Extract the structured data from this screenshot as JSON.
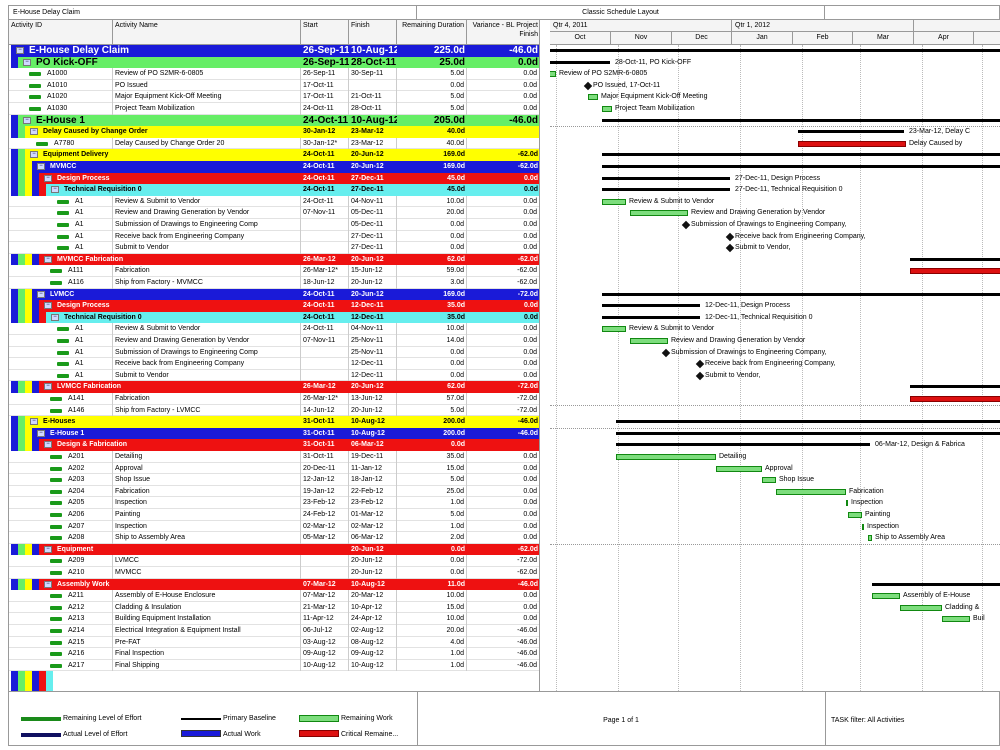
{
  "header": {
    "project_title": "E-House Delay Claim",
    "layout_title": "Classic Schedule Layout"
  },
  "columns": {
    "id": "Activity ID",
    "name": "Activity Name",
    "start": "Start",
    "finish": "Finish",
    "remaining": "Remaining Duration",
    "variance": "Variance - BL Project Finish"
  },
  "timescale": {
    "quarters": [
      "Qtr 4, 2011",
      "Qtr 1, 2012",
      ""
    ],
    "months": [
      "Oct",
      "Nov",
      "Dec",
      "Jan",
      "Feb",
      "Mar",
      "Apr",
      ""
    ]
  },
  "rows": [
    {
      "id": "",
      "name": "E-House Delay Claim",
      "start": "26-Sep-11",
      "finish": "10-Aug-12",
      "dur": "225.0d",
      "var": "-46.0d",
      "kind": "wbs1",
      "level": 0
    },
    {
      "id": "",
      "name": "PO Kick-OFF",
      "start": "26-Sep-11",
      "finish": "28-Oct-11",
      "dur": "25.0d",
      "var": "0.0d",
      "kind": "wbs2",
      "level": 1
    },
    {
      "id": "A1000",
      "name": "Review of PO S2MR-6-0805",
      "start": "26-Sep-11",
      "finish": "30-Sep-11",
      "dur": "5.0d",
      "var": "0.0d",
      "kind": "task",
      "level": 2
    },
    {
      "id": "A1010",
      "name": "PO Issued",
      "start": "17-Oct-11",
      "finish": "",
      "dur": "0.0d",
      "var": "0.0d",
      "kind": "task",
      "level": 2
    },
    {
      "id": "A1020",
      "name": "Major Equipment Kick-Off Meeting",
      "start": "17-Oct-11",
      "finish": "21-Oct-11",
      "dur": "5.0d",
      "var": "0.0d",
      "kind": "task",
      "level": 2
    },
    {
      "id": "A1030",
      "name": "Project Team Mobilization",
      "start": "24-Oct-11",
      "finish": "28-Oct-11",
      "dur": "5.0d",
      "var": "0.0d",
      "kind": "task",
      "level": 2
    },
    {
      "id": "",
      "name": "E-House 1",
      "start": "24-Oct-11",
      "finish": "10-Aug-12",
      "dur": "205.0d",
      "var": "-46.0d",
      "kind": "wbs2",
      "level": 1
    },
    {
      "id": "",
      "name": "Delay Caused by Change Order",
      "start": "30-Jan-12",
      "finish": "23-Mar-12",
      "dur": "40.0d",
      "var": "",
      "kind": "wbs3y",
      "level": 2
    },
    {
      "id": "A7780",
      "name": "Delay Caused by Change Order 20",
      "start": "30-Jan-12*",
      "finish": "23-Mar-12",
      "dur": "40.0d",
      "var": "",
      "kind": "task",
      "level": 3
    },
    {
      "id": "",
      "name": "Equipment Delivery",
      "start": "24-Oct-11",
      "finish": "20-Jun-12",
      "dur": "169.0d",
      "var": "-62.0d",
      "kind": "wbs3y",
      "level": 2
    },
    {
      "id": "",
      "name": "MVMCC",
      "start": "24-Oct-11",
      "finish": "20-Jun-12",
      "dur": "169.0d",
      "var": "-62.0d",
      "kind": "wbs4b",
      "level": 3
    },
    {
      "id": "",
      "name": "Design Process",
      "start": "24-Oct-11",
      "finish": "27-Dec-11",
      "dur": "45.0d",
      "var": "0.0d",
      "kind": "wbs5r",
      "level": 4
    },
    {
      "id": "",
      "name": "Technical Requisition 0",
      "start": "24-Oct-11",
      "finish": "27-Dec-11",
      "dur": "45.0d",
      "var": "0.0d",
      "kind": "wbs6c",
      "level": 5
    },
    {
      "id": "A1",
      "name": "Review & Submit to Vendor",
      "start": "24-Oct-11",
      "finish": "04-Nov-11",
      "dur": "10.0d",
      "var": "0.0d",
      "kind": "task",
      "level": 6
    },
    {
      "id": "A1",
      "name": "Review and Drawing Generation by Vendor",
      "start": "07-Nov-11",
      "finish": "05-Dec-11",
      "dur": "20.0d",
      "var": "0.0d",
      "kind": "task",
      "level": 6
    },
    {
      "id": "A1",
      "name": "Submission of Drawings to Engineering Comp",
      "start": "",
      "finish": "05-Dec-11",
      "dur": "0.0d",
      "var": "0.0d",
      "kind": "task",
      "level": 6
    },
    {
      "id": "A1",
      "name": "Receive back from Engineering Company",
      "start": "",
      "finish": "27-Dec-11",
      "dur": "0.0d",
      "var": "0.0d",
      "kind": "task",
      "level": 6
    },
    {
      "id": "A1",
      "name": "Submit to Vendor",
      "start": "",
      "finish": "27-Dec-11",
      "dur": "0.0d",
      "var": "0.0d",
      "kind": "task",
      "level": 6
    },
    {
      "id": "",
      "name": "MVMCC Fabrication",
      "start": "26-Mar-12",
      "finish": "20-Jun-12",
      "dur": "62.0d",
      "var": "-62.0d",
      "kind": "wbs5r",
      "level": 4
    },
    {
      "id": "A111",
      "name": "Fabrication",
      "start": "26-Mar-12*",
      "finish": "15-Jun-12",
      "dur": "59.0d",
      "var": "-62.0d",
      "kind": "task",
      "level": 5
    },
    {
      "id": "A116",
      "name": "Ship from Factory - MVMCC",
      "start": "18-Jun-12",
      "finish": "20-Jun-12",
      "dur": "3.0d",
      "var": "-62.0d",
      "kind": "task",
      "level": 5
    },
    {
      "id": "",
      "name": "LVMCC",
      "start": "24-Oct-11",
      "finish": "20-Jun-12",
      "dur": "169.0d",
      "var": "-72.0d",
      "kind": "wbs4b",
      "level": 3
    },
    {
      "id": "",
      "name": "Design Process",
      "start": "24-Oct-11",
      "finish": "12-Dec-11",
      "dur": "35.0d",
      "var": "0.0d",
      "kind": "wbs5r",
      "level": 4
    },
    {
      "id": "",
      "name": "Technical Requisition 0",
      "start": "24-Oct-11",
      "finish": "12-Dec-11",
      "dur": "35.0d",
      "var": "0.0d",
      "kind": "wbs6c",
      "level": 5
    },
    {
      "id": "A1",
      "name": "Review & Submit to Vendor",
      "start": "24-Oct-11",
      "finish": "04-Nov-11",
      "dur": "10.0d",
      "var": "0.0d",
      "kind": "task",
      "level": 6
    },
    {
      "id": "A1",
      "name": "Review and Drawing Generation by Vendor",
      "start": "07-Nov-11",
      "finish": "25-Nov-11",
      "dur": "14.0d",
      "var": "0.0d",
      "kind": "task",
      "level": 6
    },
    {
      "id": "A1",
      "name": "Submission of Drawings to Engineering Comp",
      "start": "",
      "finish": "25-Nov-11",
      "dur": "0.0d",
      "var": "0.0d",
      "kind": "task",
      "level": 6
    },
    {
      "id": "A1",
      "name": "Receive back from Engineering Company",
      "start": "",
      "finish": "12-Dec-11",
      "dur": "0.0d",
      "var": "0.0d",
      "kind": "task",
      "level": 6
    },
    {
      "id": "A1",
      "name": "Submit to Vendor",
      "start": "",
      "finish": "12-Dec-11",
      "dur": "0.0d",
      "var": "0.0d",
      "kind": "task",
      "level": 6
    },
    {
      "id": "",
      "name": "LVMCC Fabrication",
      "start": "26-Mar-12",
      "finish": "20-Jun-12",
      "dur": "62.0d",
      "var": "-72.0d",
      "kind": "wbs5r",
      "level": 4
    },
    {
      "id": "A141",
      "name": "Fabrication",
      "start": "26-Mar-12*",
      "finish": "13-Jun-12",
      "dur": "57.0d",
      "var": "-72.0d",
      "kind": "task",
      "level": 5
    },
    {
      "id": "A146",
      "name": "Ship from Factory - LVMCC",
      "start": "14-Jun-12",
      "finish": "20-Jun-12",
      "dur": "5.0d",
      "var": "-72.0d",
      "kind": "task",
      "level": 5
    },
    {
      "id": "",
      "name": "E-Houses",
      "start": "31-Oct-11",
      "finish": "10-Aug-12",
      "dur": "200.0d",
      "var": "-46.0d",
      "kind": "wbs3y",
      "level": 2
    },
    {
      "id": "",
      "name": "E-House 1",
      "start": "31-Oct-11",
      "finish": "10-Aug-12",
      "dur": "200.0d",
      "var": "-46.0d",
      "kind": "wbs4b",
      "level": 3
    },
    {
      "id": "",
      "name": "Design & Fabrication",
      "start": "31-Oct-11",
      "finish": "06-Mar-12",
      "dur": "0.0d",
      "var": "",
      "kind": "wbs5r",
      "level": 4
    },
    {
      "id": "A201",
      "name": "Detailing",
      "start": "31-Oct-11",
      "finish": "19-Dec-11",
      "dur": "35.0d",
      "var": "0.0d",
      "kind": "task",
      "level": 5
    },
    {
      "id": "A202",
      "name": "Approval",
      "start": "20-Dec-11",
      "finish": "11-Jan-12",
      "dur": "15.0d",
      "var": "0.0d",
      "kind": "task",
      "level": 5
    },
    {
      "id": "A203",
      "name": "Shop Issue",
      "start": "12-Jan-12",
      "finish": "18-Jan-12",
      "dur": "5.0d",
      "var": "0.0d",
      "kind": "task",
      "level": 5
    },
    {
      "id": "A204",
      "name": "Fabrication",
      "start": "19-Jan-12",
      "finish": "22-Feb-12",
      "dur": "25.0d",
      "var": "0.0d",
      "kind": "task",
      "level": 5
    },
    {
      "id": "A205",
      "name": "Inspection",
      "start": "23-Feb-12",
      "finish": "23-Feb-12",
      "dur": "1.0d",
      "var": "0.0d",
      "kind": "task",
      "level": 5
    },
    {
      "id": "A206",
      "name": "Painting",
      "start": "24-Feb-12",
      "finish": "01-Mar-12",
      "dur": "5.0d",
      "var": "0.0d",
      "kind": "task",
      "level": 5
    },
    {
      "id": "A207",
      "name": "Inspection",
      "start": "02-Mar-12",
      "finish": "02-Mar-12",
      "dur": "1.0d",
      "var": "0.0d",
      "kind": "task",
      "level": 5
    },
    {
      "id": "A208",
      "name": "Ship to Assembly Area",
      "start": "05-Mar-12",
      "finish": "06-Mar-12",
      "dur": "2.0d",
      "var": "0.0d",
      "kind": "task",
      "level": 5
    },
    {
      "id": "",
      "name": "Equipment",
      "start": "",
      "finish": "20-Jun-12",
      "dur": "0.0d",
      "var": "-62.0d",
      "kind": "wbs5r",
      "level": 4
    },
    {
      "id": "A209",
      "name": "LVMCC",
      "start": "",
      "finish": "20-Jun-12",
      "dur": "0.0d",
      "var": "-72.0d",
      "kind": "task",
      "level": 5
    },
    {
      "id": "A210",
      "name": "MVMCC",
      "start": "",
      "finish": "20-Jun-12",
      "dur": "0.0d",
      "var": "-62.0d",
      "kind": "task",
      "level": 5
    },
    {
      "id": "",
      "name": "Assembly Work",
      "start": "07-Mar-12",
      "finish": "10-Aug-12",
      "dur": "11.0d",
      "var": "-46.0d",
      "kind": "wbs5r",
      "level": 4
    },
    {
      "id": "A211",
      "name": "Assembly of E-House Enclosure",
      "start": "07-Mar-12",
      "finish": "20-Mar-12",
      "dur": "10.0d",
      "var": "0.0d",
      "kind": "task",
      "level": 5
    },
    {
      "id": "A212",
      "name": "Cladding & Insulation",
      "start": "21-Mar-12",
      "finish": "10-Apr-12",
      "dur": "15.0d",
      "var": "0.0d",
      "kind": "task",
      "level": 5
    },
    {
      "id": "A213",
      "name": "Building Equipment Installation",
      "start": "11-Apr-12",
      "finish": "24-Apr-12",
      "dur": "10.0d",
      "var": "0.0d",
      "kind": "task",
      "level": 5
    },
    {
      "id": "A214",
      "name": "Electrical Integration & Equipment Install",
      "start": "06-Jul-12",
      "finish": "02-Aug-12",
      "dur": "20.0d",
      "var": "-46.0d",
      "kind": "task",
      "level": 5
    },
    {
      "id": "A215",
      "name": "Pre-FAT",
      "start": "03-Aug-12",
      "finish": "08-Aug-12",
      "dur": "4.0d",
      "var": "-46.0d",
      "kind": "task",
      "level": 5
    },
    {
      "id": "A216",
      "name": "Final Inspection",
      "start": "09-Aug-12",
      "finish": "09-Aug-12",
      "dur": "1.0d",
      "var": "-46.0d",
      "kind": "task",
      "level": 5
    },
    {
      "id": "A217",
      "name": "Final Shipping",
      "start": "10-Aug-12",
      "finish": "10-Aug-12",
      "dur": "1.0d",
      "var": "-46.0d",
      "kind": "task",
      "level": 5
    }
  ],
  "gantt_labels": [
    {
      "text": "28-Oct-11, PO Kick-OFF",
      "row": 1
    },
    {
      "text": "Review of PO S2MR-6-0805",
      "row": 2
    },
    {
      "text": "PO Issued, 17-Oct-11",
      "row": 3
    },
    {
      "text": "Major Equipment Kick-Off Meeting",
      "row": 4
    },
    {
      "text": "Project Team Mobilization",
      "row": 5
    },
    {
      "text": "23-Mar-12, Delay C",
      "row": 7
    },
    {
      "text": "Delay Caused by",
      "row": 8
    },
    {
      "text": "27-Dec-11, Design Process",
      "row": 11
    },
    {
      "text": "27-Dec-11, Technical Requisition 0",
      "row": 12
    },
    {
      "text": "Review & Submit to Vendor",
      "row": 13
    },
    {
      "text": "Review and Drawing Generation by Vendor",
      "row": 14
    },
    {
      "text": "Submission of Drawings to Engineering Company,",
      "row": 15
    },
    {
      "text": "Receive back from Engineering Company,",
      "row": 16
    },
    {
      "text": "Submit to Vendor,",
      "row": 17
    },
    {
      "text": "12-Dec-11, Design Process",
      "row": 22
    },
    {
      "text": "12-Dec-11, Technical Requisition 0",
      "row": 23
    },
    {
      "text": "Review & Submit to Vendor",
      "row": 24
    },
    {
      "text": "Review and Drawing Generation by Vendor",
      "row": 25
    },
    {
      "text": "Submission of Drawings to Engineering Company,",
      "row": 26
    },
    {
      "text": "Receive back from Engineering Company,",
      "row": 27
    },
    {
      "text": "Submit to Vendor,",
      "row": 28
    },
    {
      "text": "06-Mar-12, Design & Fabrica",
      "row": 34
    },
    {
      "text": "Detailing",
      "row": 35
    },
    {
      "text": "Approval",
      "row": 36
    },
    {
      "text": "Shop Issue",
      "row": 37
    },
    {
      "text": "Fabrication",
      "row": 38
    },
    {
      "text": "Inspection",
      "row": 39
    },
    {
      "text": "Painting",
      "row": 40
    },
    {
      "text": "Inspection",
      "row": 41
    },
    {
      "text": "Ship to Assembly Area",
      "row": 42
    },
    {
      "text": "Assembly of E-House",
      "row": 47
    },
    {
      "text": "Cladding &",
      "row": 48
    },
    {
      "text": "Buil",
      "row": 49
    }
  ],
  "footer": {
    "legend": {
      "remaining_loe": "Remaining Level of Effort",
      "actual_loe": "Actual Level of Effort",
      "primary_baseline": "Primary Baseline",
      "actual_work": "Actual Work",
      "remaining_work": "Remaining Work",
      "critical_remaining": "Critical Remaine..."
    },
    "page": "Page 1 of 1",
    "filter": "TASK filter: All Activities"
  },
  "colors": {
    "wbs1": "#1a1ad8",
    "wbs2": "#66ee66",
    "wbs3y": "#ffff00",
    "wbs4b": "#1a1ad8",
    "wbs5r": "#ee1111",
    "wbs6c": "#66eeee"
  }
}
